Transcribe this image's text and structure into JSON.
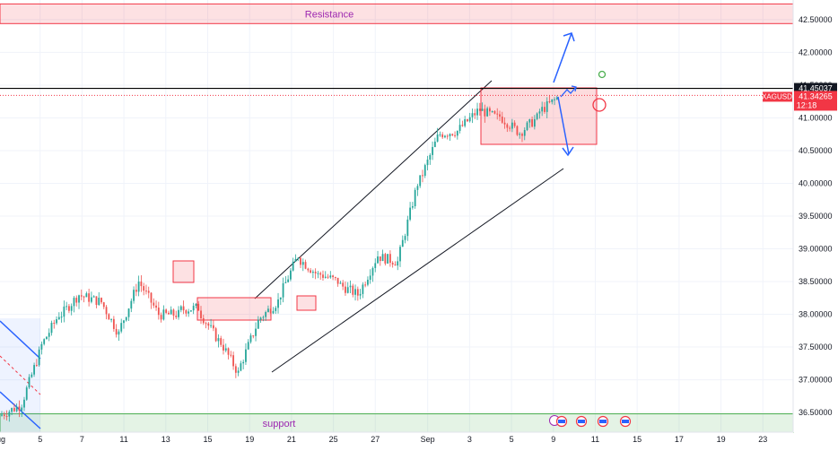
{
  "chart_data": {
    "type": "candlestick",
    "symbol": "XAGUSD",
    "last_price": "41.34265",
    "countdown": "12:18",
    "marked_level": "41.45037",
    "ylim": [
      36.2,
      42.8
    ],
    "y_ticks": [
      "42.50000",
      "42.00000",
      "41.50000",
      "41.00000",
      "40.50000",
      "40.00000",
      "39.50000",
      "39.00000",
      "38.50000",
      "38.00000",
      "37.50000",
      "37.00000",
      "36.50000"
    ],
    "x_ticks": [
      "Aug",
      "5",
      "7",
      "11",
      "13",
      "15",
      "19",
      "21",
      "25",
      "27",
      "Sep",
      "3",
      "5",
      "9",
      "11",
      "15",
      "17",
      "19",
      "23"
    ],
    "zones": [
      {
        "label": "Resistance",
        "y_low": 42.44,
        "y_high": 42.74
      },
      {
        "label": "support",
        "y_low": 36.2,
        "y_high": 36.48
      }
    ],
    "daily_closes": [
      36.6,
      37.4,
      38.0,
      38.3,
      38.2,
      37.7,
      38.5,
      38.0,
      38.0,
      38.1,
      37.6,
      37.1,
      37.9,
      38.2,
      38.9,
      38.6,
      38.5,
      38.3,
      38.9,
      38.8,
      40.0,
      40.7,
      40.8,
      41.1,
      41.0,
      40.8,
      41.0,
      41.3
    ],
    "colors": {
      "up": "#26a69a",
      "down": "#ef5350",
      "resistance": "#f23645",
      "support": "#4caf50",
      "arrow": "#2962ff",
      "price_tag": "#f23645",
      "level_line": "#000000"
    }
  },
  "ui": {
    "symbol_label": "XAGUSD",
    "price_label": "41.34265",
    "countdown_label": "12:18",
    "level_label": "41.45037",
    "resistance_label": "Resistance",
    "support_label": "support"
  }
}
